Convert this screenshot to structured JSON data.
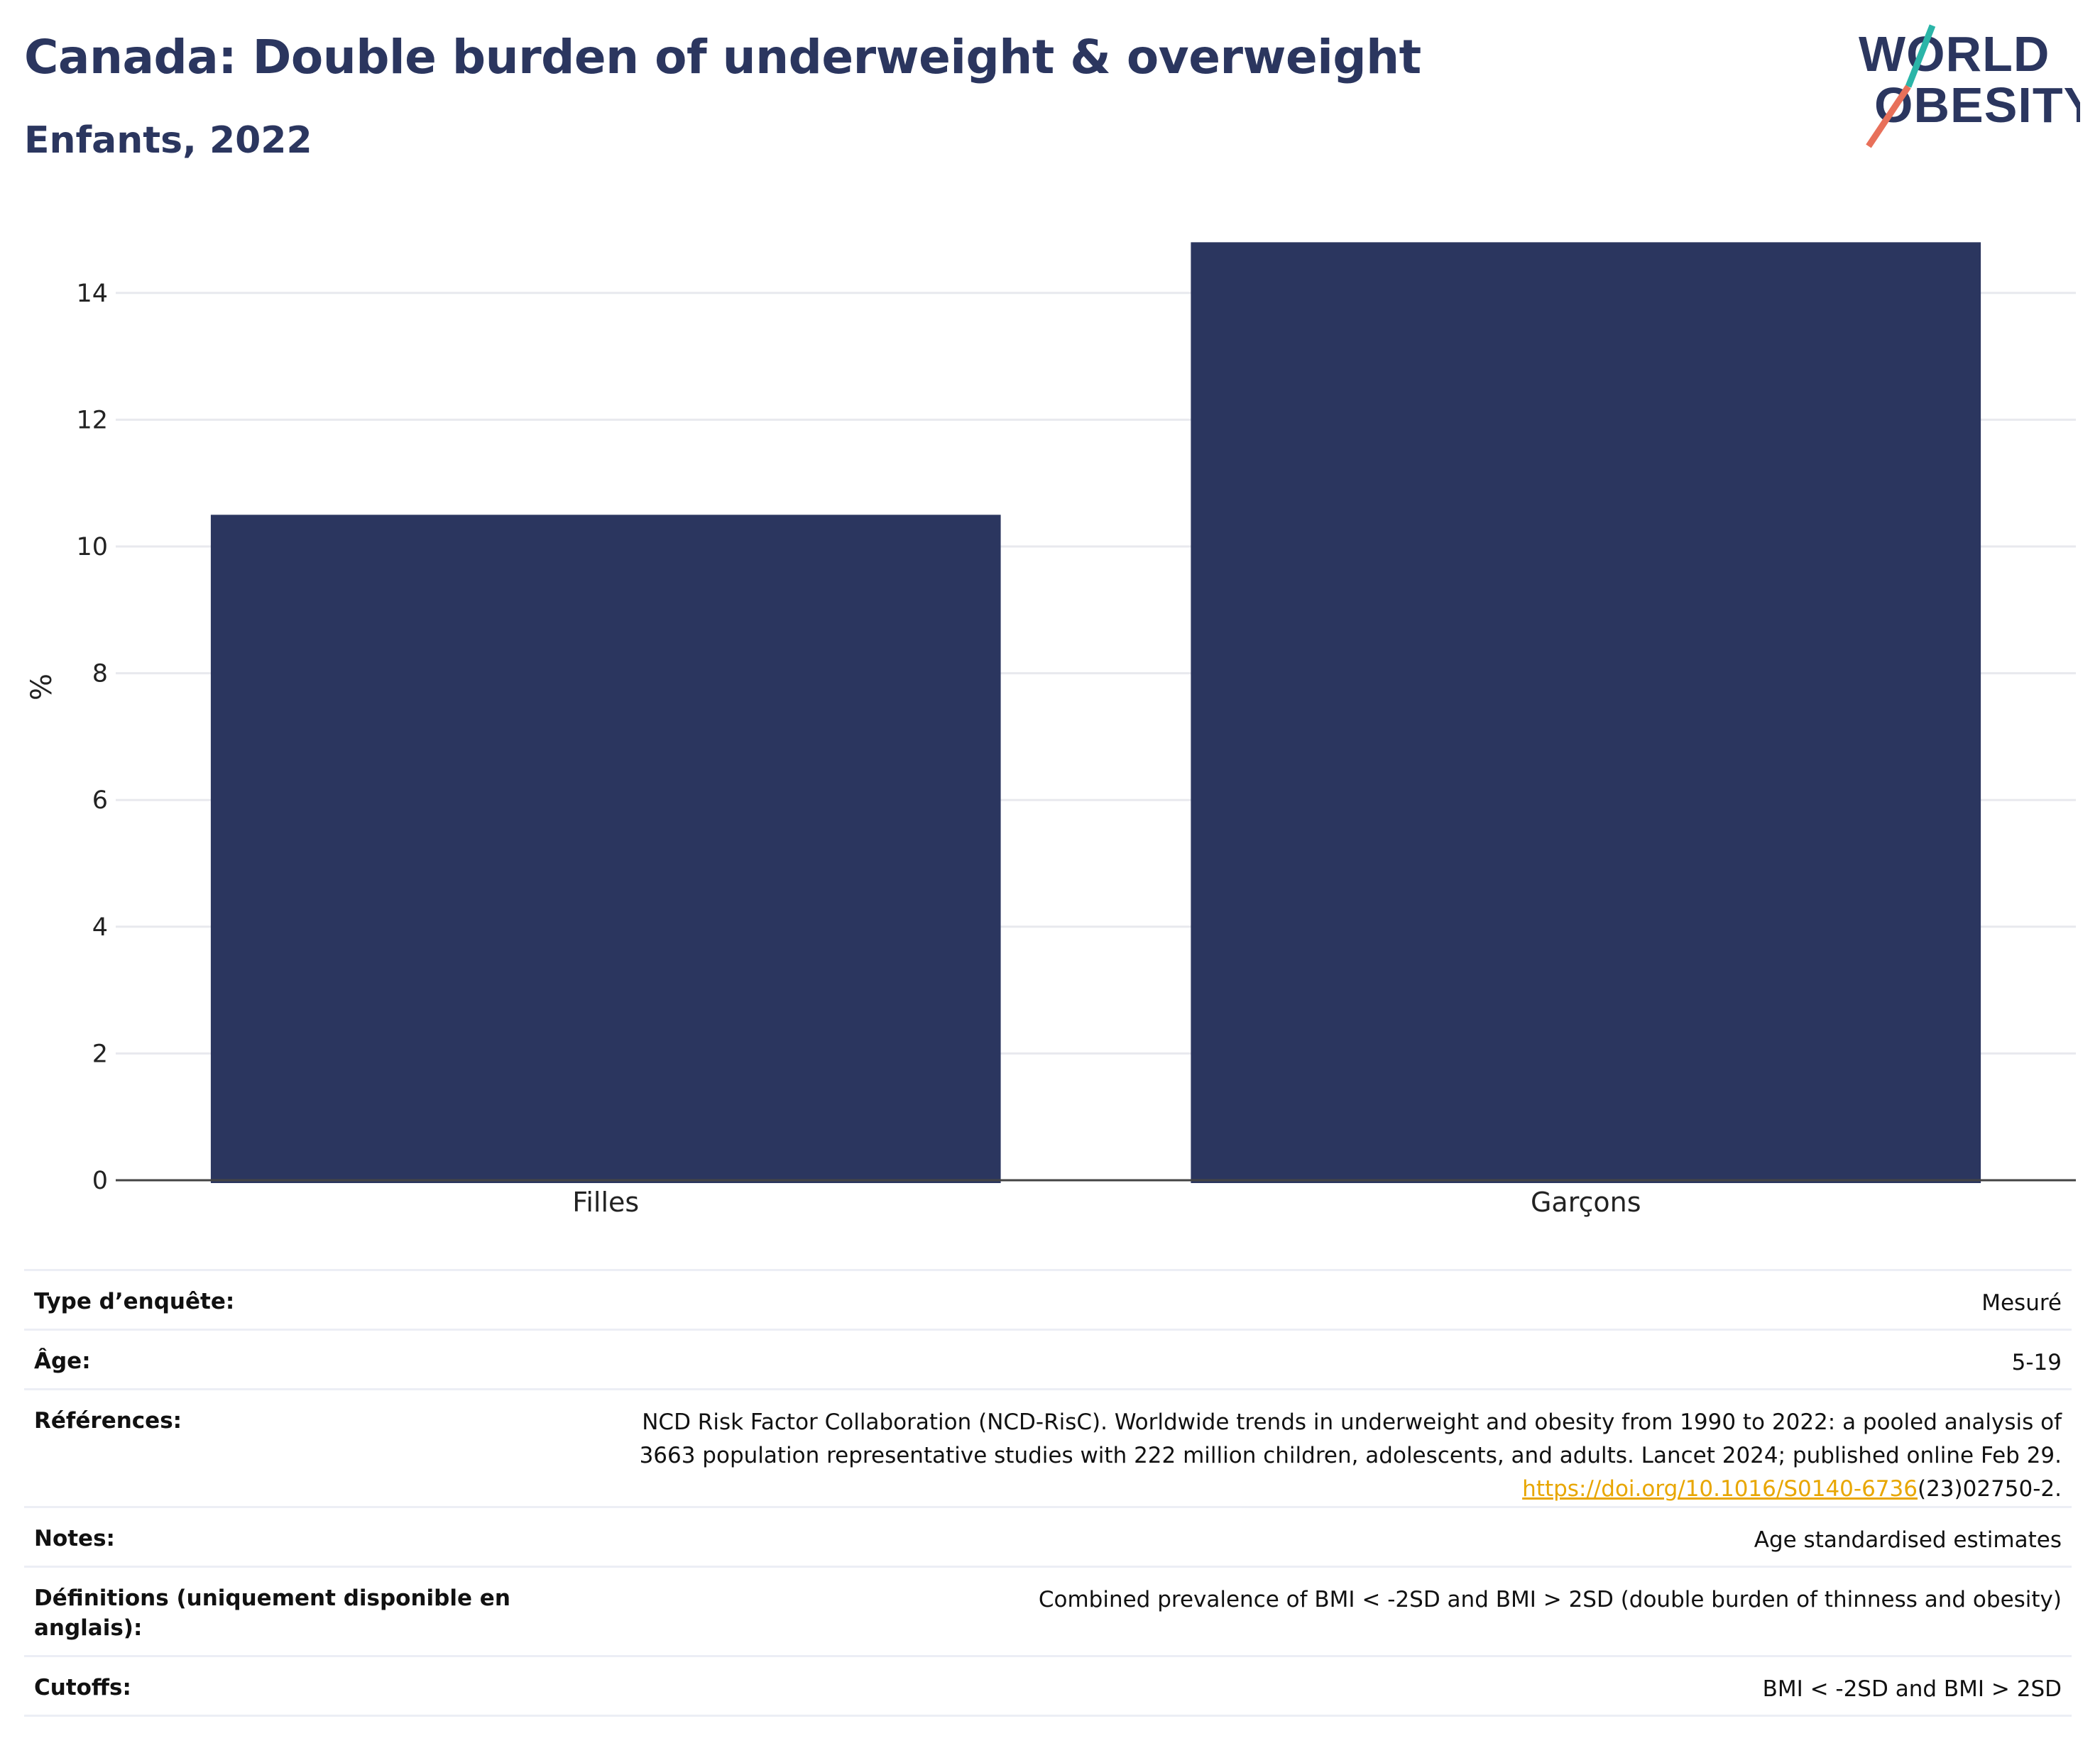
{
  "header": {
    "title": "Canada: Double burden of underweight & overweight",
    "subtitle": "Enfants, 2022"
  },
  "logo": {
    "line1": "WORLD",
    "line2": "OBESITY",
    "colors": {
      "text": "#2b365f",
      "slash_top": "#2bb5a8",
      "slash_bottom": "#e8705a"
    }
  },
  "chart_data": {
    "type": "bar",
    "categories": [
      "Filles",
      "Garçons"
    ],
    "values": [
      10.5,
      14.8
    ],
    "ylabel": "%",
    "ylim": [
      0,
      15
    ],
    "yticks": [
      0,
      2,
      4,
      6,
      8,
      10,
      12,
      14
    ],
    "grid": true,
    "bar_color": "#2b365f"
  },
  "info": {
    "rows": [
      {
        "key": "Type d’enquête:",
        "value": "Mesuré"
      },
      {
        "key": "Âge:",
        "value": "5-19"
      },
      {
        "key": "Références:",
        "value_line1": "NCD Risk Factor Collaboration (NCD-RisC). Worldwide trends in underweight and obesity from 1990 to 2022: a pooled analysis of",
        "value_line2": "3663 population representative studies with 222 million children, adolescents, and adults. Lancet 2024; published online Feb 29.",
        "link_text": "https://doi.org/10.1016/S0140-6736",
        "link_suffix": "(23)02750-2."
      },
      {
        "key": "Notes:",
        "value": "Age standardised estimates"
      },
      {
        "key": "Définitions (uniquement disponible en anglais):",
        "value": "Combined prevalence of BMI < -2SD and BMI > 2SD (double burden of thinness and obesity)"
      },
      {
        "key": "Cutoffs:",
        "value": "BMI < -2SD and BMI > 2SD"
      }
    ]
  }
}
